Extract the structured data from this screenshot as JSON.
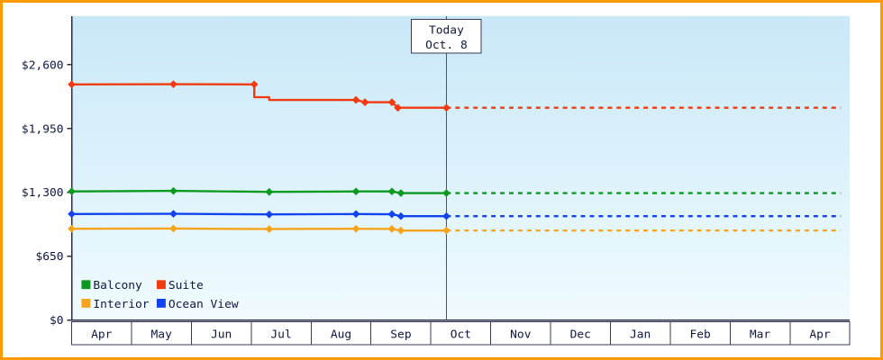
{
  "chart_data": {
    "type": "line",
    "x_axis": {
      "month_labels": [
        "Apr",
        "May",
        "Jun",
        "Jul",
        "Aug",
        "Sep",
        "Oct",
        "Nov",
        "Dec",
        "Jan",
        "Feb",
        "Mar",
        "Apr"
      ]
    },
    "y_axis": {
      "tick_labels": [
        "$2,600",
        "$1,950",
        "$1,300",
        "$650",
        "$0"
      ],
      "tick_values": [
        2600,
        1950,
        1300,
        650,
        0
      ],
      "min_value": 0,
      "max_value": 2600
    },
    "today_marker": {
      "line1": "Today",
      "line2": "Oct. 8",
      "x_months": 6.26
    },
    "series": [
      {
        "name": "Suite",
        "color": "#f13a10",
        "points": [
          [
            0,
            2400,
            1
          ],
          [
            1.7,
            2402,
            1
          ],
          [
            3.05,
            2400,
            1
          ],
          [
            3.05,
            2270,
            0
          ],
          [
            3.3,
            2270,
            0
          ],
          [
            3.3,
            2242,
            0
          ],
          [
            4.75,
            2242,
            1
          ],
          [
            4.9,
            2218,
            1
          ],
          [
            5.35,
            2218,
            1
          ],
          [
            5.45,
            2162,
            1
          ],
          [
            6.26,
            2162,
            1
          ]
        ],
        "future_value": 2162
      },
      {
        "name": "Balcony",
        "color": "#0b9a1f",
        "points": [
          [
            0,
            1310,
            1
          ],
          [
            1.7,
            1315,
            1
          ],
          [
            3.3,
            1305,
            1
          ],
          [
            4.75,
            1310,
            1
          ],
          [
            5.35,
            1310,
            1
          ],
          [
            5.5,
            1293,
            1
          ],
          [
            6.26,
            1293,
            1
          ]
        ],
        "future_value": 1293
      },
      {
        "name": "Ocean View",
        "color": "#1244ee",
        "points": [
          [
            0,
            1080,
            1
          ],
          [
            1.7,
            1082,
            1
          ],
          [
            3.3,
            1076,
            1
          ],
          [
            4.75,
            1080,
            1
          ],
          [
            5.35,
            1078,
            1
          ],
          [
            5.5,
            1058,
            1
          ],
          [
            6.26,
            1058,
            1
          ]
        ],
        "future_value": 1058
      },
      {
        "name": "Interior",
        "color": "#f6a41c",
        "points": [
          [
            0,
            930,
            1
          ],
          [
            1.7,
            932,
            1
          ],
          [
            3.3,
            927,
            1
          ],
          [
            4.75,
            930,
            1
          ],
          [
            5.35,
            928,
            1
          ],
          [
            5.5,
            912,
            1
          ],
          [
            6.26,
            912,
            1
          ]
        ],
        "future_value": 912
      }
    ],
    "legend": {
      "items": [
        "Balcony",
        "Suite",
        "Interior",
        "Ocean View"
      ]
    },
    "frame_color": "#ff9b00",
    "background_top": "#c9e8f8",
    "background_bottom": "#f0fbff",
    "axis_color": "#2b2b4a",
    "today_line_color": "#50506e"
  }
}
